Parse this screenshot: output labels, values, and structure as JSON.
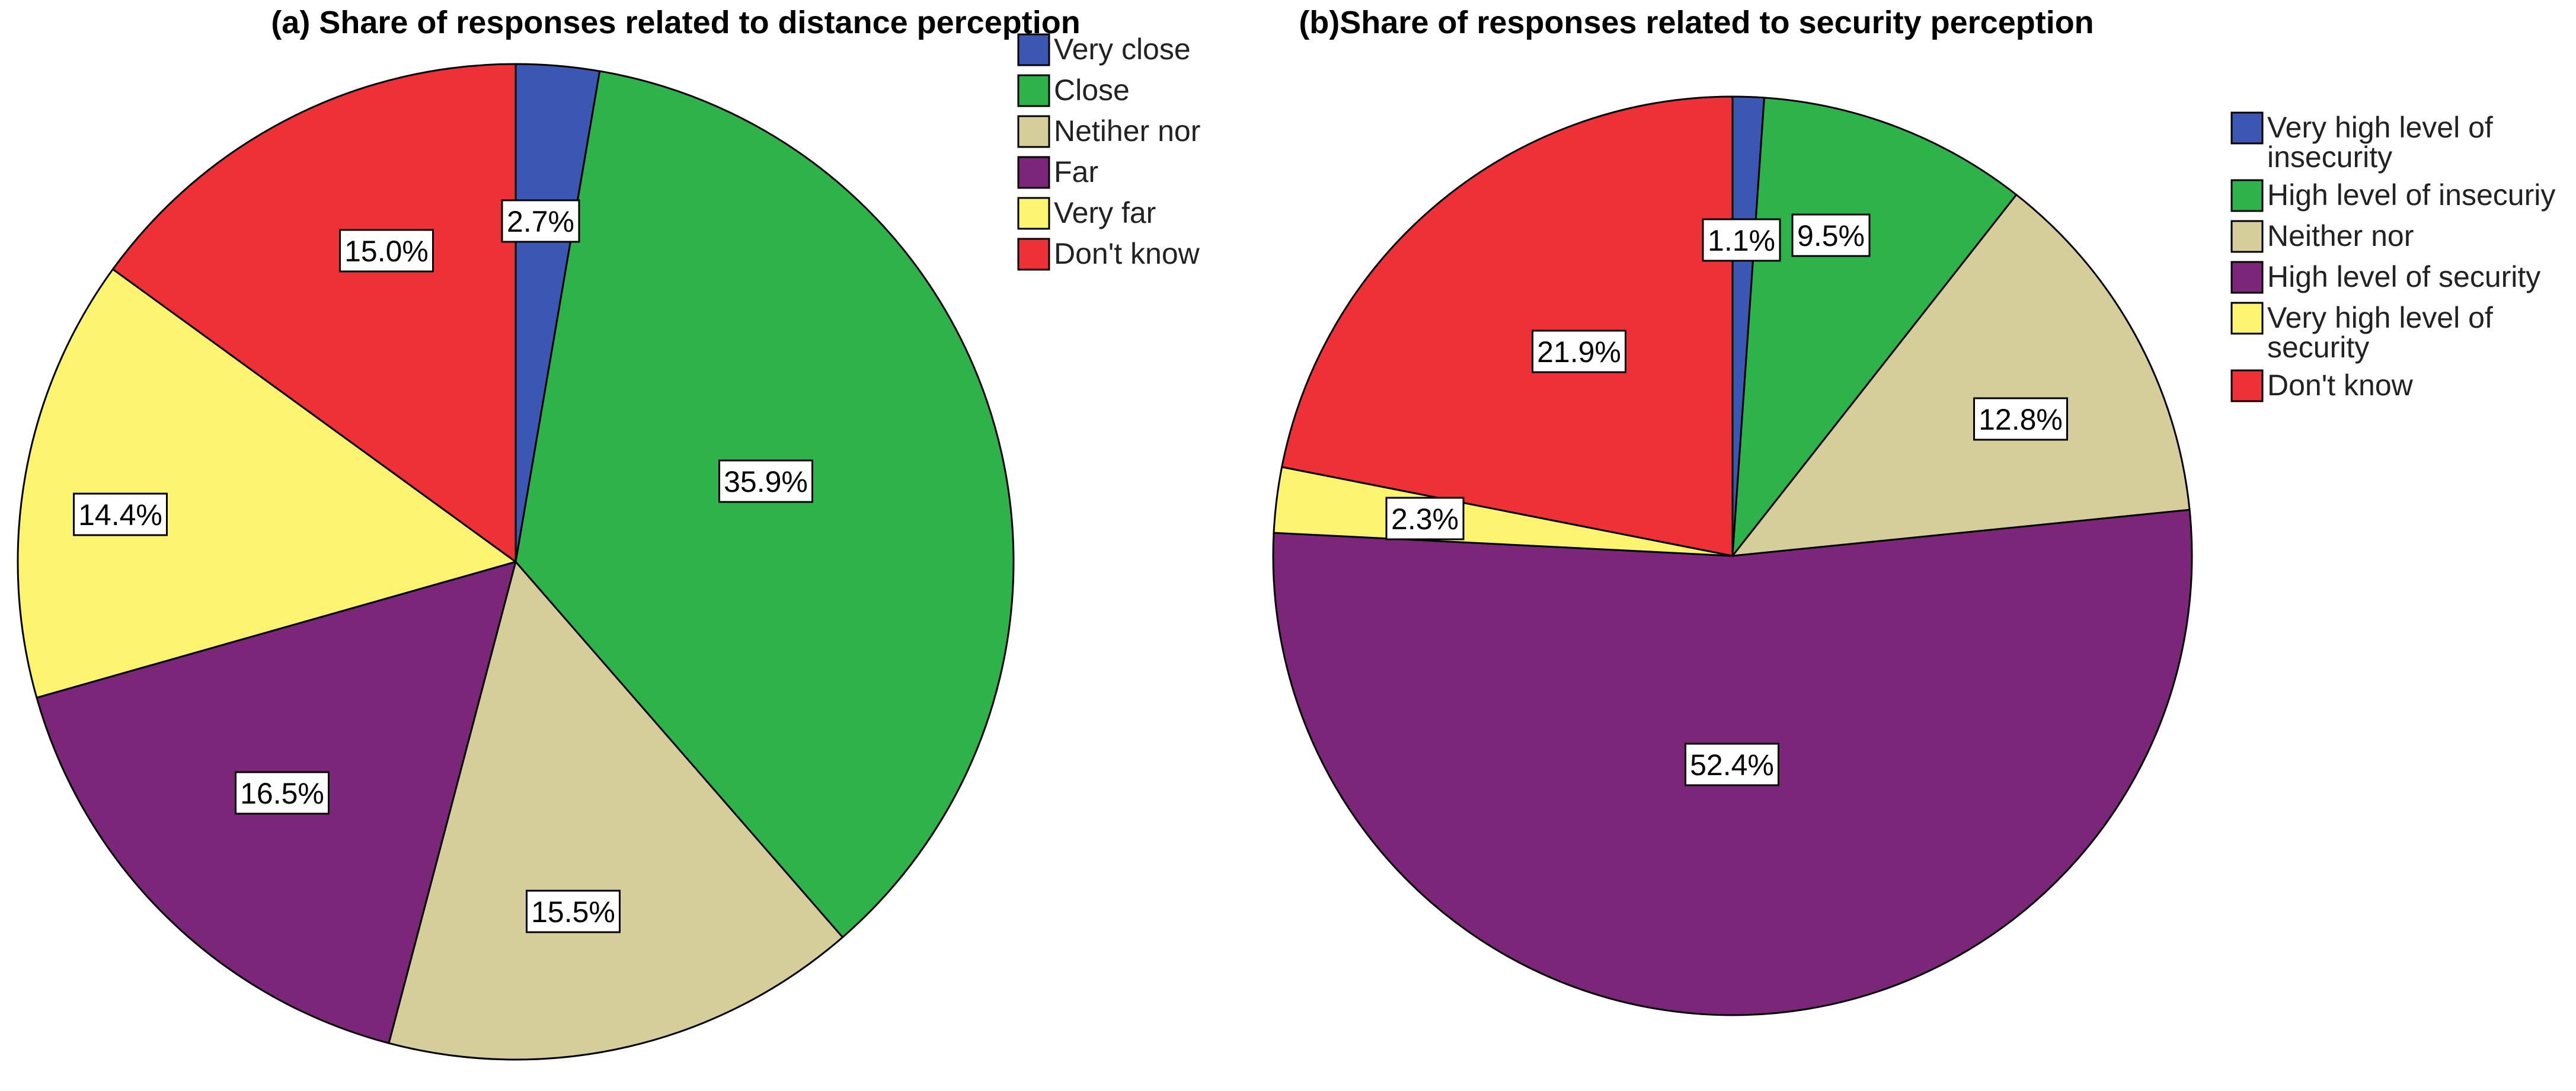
{
  "chart_data": [
    {
      "type": "pie",
      "title": "(a) Share of responses related to distance perception",
      "start_angle_deg": 0,
      "direction": "clockwise",
      "legend_position": "top-right",
      "slices": [
        {
          "label": "Very close",
          "value": 2.7,
          "display": "2.7%",
          "color": "#3b57b3"
        },
        {
          "label": "Close",
          "value": 35.9,
          "display": "35.9%",
          "color": "#2db34a"
        },
        {
          "label": "Netiher nor",
          "value": 15.5,
          "display": "15.5%",
          "color": "#d5ce9a"
        },
        {
          "label": "Far",
          "value": 16.5,
          "display": "16.5%",
          "color": "#7b2679"
        },
        {
          "label": "Very far",
          "value": 14.4,
          "display": "14.4%",
          "color": "#fcf46e"
        },
        {
          "label": "Don't know",
          "value": 15.0,
          "display": "15.0%",
          "color": "#ee3136"
        }
      ]
    },
    {
      "type": "pie",
      "title": "(b)Share of responses related to security perception",
      "start_angle_deg": 0,
      "direction": "clockwise",
      "legend_position": "right",
      "slices": [
        {
          "label": "Very high level of insecurity",
          "value": 1.1,
          "display": "1.1%",
          "color": "#3b57b3"
        },
        {
          "label": "High level of insecuriy",
          "value": 9.5,
          "display": "9.5%",
          "color": "#2db34a"
        },
        {
          "label": "Neither nor",
          "value": 12.8,
          "display": "12.8%",
          "color": "#d5ce9a"
        },
        {
          "label": "High level of security",
          "value": 52.4,
          "display": "52.4%",
          "color": "#7b2679"
        },
        {
          "label": "Very high level of security",
          "value": 2.3,
          "display": "2.3%",
          "color": "#fcf46e"
        },
        {
          "label": "Don't know",
          "value": 21.9,
          "display": "21.9%",
          "color": "#ee3136"
        }
      ]
    }
  ]
}
